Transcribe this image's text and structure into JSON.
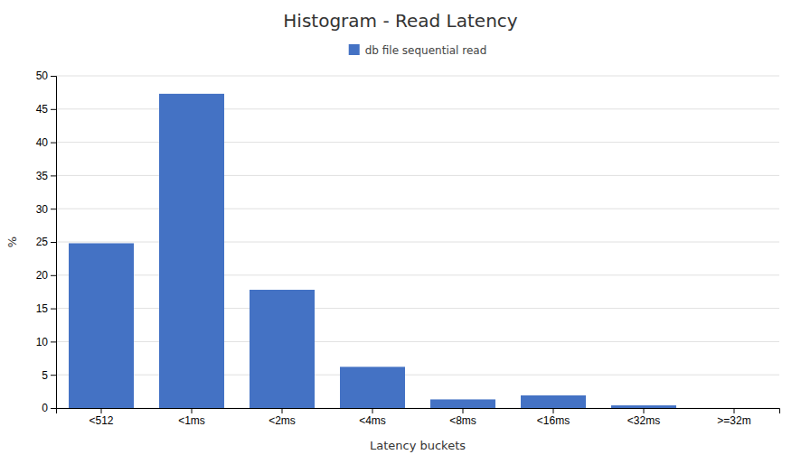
{
  "chart_data": {
    "type": "bar",
    "title": "Histogram - Read Latency",
    "xlabel": "Latency buckets",
    "ylabel": "%",
    "categories": [
      "<512",
      "<1ms",
      "<2ms",
      "<4ms",
      "<8ms",
      "<16ms",
      "<32ms",
      ">=32m"
    ],
    "series": [
      {
        "name": "db file sequential read",
        "color": "#4472C4",
        "values": [
          24.8,
          47.3,
          17.8,
          6.2,
          1.3,
          1.9,
          0.4,
          0.0
        ]
      }
    ],
    "ylim": [
      0,
      50
    ],
    "yticks": [
      0,
      5,
      10,
      15,
      20,
      25,
      30,
      35,
      40,
      45,
      50
    ],
    "grid": true,
    "legend": "top"
  }
}
